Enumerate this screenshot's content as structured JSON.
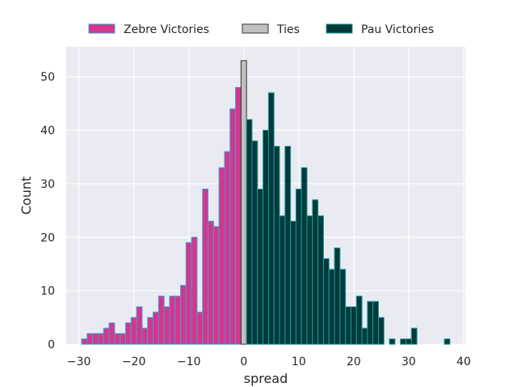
{
  "chart_data": {
    "type": "bar",
    "title": "",
    "xlabel": "spread",
    "ylabel": "Count",
    "xlim": [
      -32.3,
      40.3
    ],
    "ylim": [
      0,
      55.6
    ],
    "xticks": [
      -30,
      -20,
      -10,
      0,
      10,
      20,
      30,
      40
    ],
    "yticks": [
      0,
      10,
      20,
      30,
      40,
      50
    ],
    "grid": true,
    "legend_position": "top-center, above plot",
    "series": [
      {
        "name": "Zebre Victories",
        "color": "#d6358c",
        "edge_color": "#3c9fd6",
        "values": [
          {
            "spread": -29,
            "count": 1
          },
          {
            "spread": -28,
            "count": 2
          },
          {
            "spread": -27,
            "count": 2
          },
          {
            "spread": -26,
            "count": 2
          },
          {
            "spread": -25,
            "count": 3
          },
          {
            "spread": -24,
            "count": 4
          },
          {
            "spread": -23,
            "count": 2
          },
          {
            "spread": -22,
            "count": 2
          },
          {
            "spread": -21,
            "count": 4
          },
          {
            "spread": -20,
            "count": 5
          },
          {
            "spread": -19,
            "count": 7
          },
          {
            "spread": -18,
            "count": 3
          },
          {
            "spread": -17,
            "count": 5
          },
          {
            "spread": -16,
            "count": 6
          },
          {
            "spread": -15,
            "count": 9
          },
          {
            "spread": -14,
            "count": 7
          },
          {
            "spread": -13,
            "count": 9
          },
          {
            "spread": -12,
            "count": 9
          },
          {
            "spread": -11,
            "count": 11
          },
          {
            "spread": -10,
            "count": 19
          },
          {
            "spread": -9,
            "count": 20
          },
          {
            "spread": -8,
            "count": 6
          },
          {
            "spread": -7,
            "count": 29
          },
          {
            "spread": -6,
            "count": 23
          },
          {
            "spread": -5,
            "count": 22
          },
          {
            "spread": -4,
            "count": 33
          },
          {
            "spread": -3,
            "count": 36
          },
          {
            "spread": -2,
            "count": 44
          },
          {
            "spread": -1,
            "count": 48
          }
        ]
      },
      {
        "name": "Ties",
        "color": "#c0c0c0",
        "edge_color": "#333333",
        "values": [
          {
            "spread": 0,
            "count": 53
          }
        ]
      },
      {
        "name": "Pau Victories",
        "color": "#003a3a",
        "edge_color": "#1a9a9a",
        "values": [
          {
            "spread": 1,
            "count": 42
          },
          {
            "spread": 2,
            "count": 38
          },
          {
            "spread": 3,
            "count": 29
          },
          {
            "spread": 4,
            "count": 40
          },
          {
            "spread": 5,
            "count": 47
          },
          {
            "spread": 6,
            "count": 37
          },
          {
            "spread": 7,
            "count": 24
          },
          {
            "spread": 8,
            "count": 37
          },
          {
            "spread": 9,
            "count": 23
          },
          {
            "spread": 10,
            "count": 29
          },
          {
            "spread": 11,
            "count": 33
          },
          {
            "spread": 12,
            "count": 24
          },
          {
            "spread": 13,
            "count": 27
          },
          {
            "spread": 14,
            "count": 24
          },
          {
            "spread": 15,
            "count": 16
          },
          {
            "spread": 16,
            "count": 14
          },
          {
            "spread": 17,
            "count": 18
          },
          {
            "spread": 18,
            "count": 14
          },
          {
            "spread": 19,
            "count": 7
          },
          {
            "spread": 20,
            "count": 7
          },
          {
            "spread": 21,
            "count": 9
          },
          {
            "spread": 22,
            "count": 3
          },
          {
            "spread": 23,
            "count": 8
          },
          {
            "spread": 24,
            "count": 8
          },
          {
            "spread": 25,
            "count": 5
          },
          {
            "spread": 26,
            "count": 0
          },
          {
            "spread": 27,
            "count": 1
          },
          {
            "spread": 28,
            "count": 0
          },
          {
            "spread": 29,
            "count": 1
          },
          {
            "spread": 30,
            "count": 1
          },
          {
            "spread": 31,
            "count": 3
          },
          {
            "spread": 32,
            "count": 0
          },
          {
            "spread": 33,
            "count": 0
          },
          {
            "spread": 34,
            "count": 0
          },
          {
            "spread": 35,
            "count": 0
          },
          {
            "spread": 36,
            "count": 0
          },
          {
            "spread": 37,
            "count": 1
          }
        ]
      }
    ]
  }
}
